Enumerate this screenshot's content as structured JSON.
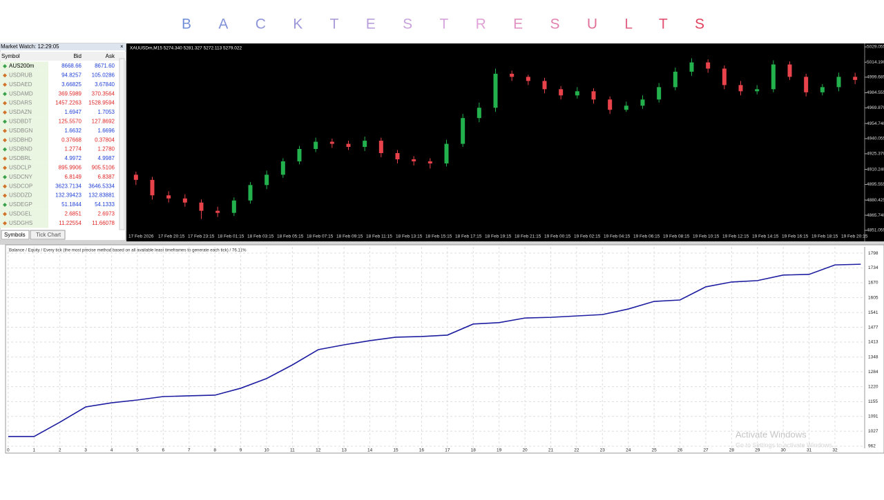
{
  "title": "BACKTESTRESULTS",
  "market_watch": {
    "title": "Market Watch: 12:29:05",
    "columns": [
      "Symbol",
      "Bid",
      "Ask"
    ],
    "rows": [
      {
        "symbol": "AUS200m",
        "bid": "8668.66",
        "ask": "8671.60",
        "color": "#1f3fd6"
      },
      {
        "symbol": "USDRUB",
        "bid": "94.8257",
        "ask": "105.0286",
        "color": "#1f3fd6"
      },
      {
        "symbol": "USDAED",
        "bid": "3.66825",
        "ask": "3.67840",
        "color": "#1f3fd6"
      },
      {
        "symbol": "USDAMD",
        "bid": "369.5989",
        "ask": "370.3564",
        "color": "#e02424"
      },
      {
        "symbol": "USDARS",
        "bid": "1457.2263",
        "ask": "1528.9594",
        "color": "#e02424"
      },
      {
        "symbol": "USDAZN",
        "bid": "1.6947",
        "ask": "1.7053",
        "color": "#1f3fd6"
      },
      {
        "symbol": "USDBDT",
        "bid": "125.5570",
        "ask": "127.8692",
        "color": "#e02424"
      },
      {
        "symbol": "USDBGN",
        "bid": "1.6632",
        "ask": "1.6696",
        "color": "#1f3fd6"
      },
      {
        "symbol": "USDBHD",
        "bid": "0.37668",
        "ask": "0.37804",
        "color": "#e02424"
      },
      {
        "symbol": "USDBND",
        "bid": "1.2774",
        "ask": "1.2780",
        "color": "#e02424"
      },
      {
        "symbol": "USDBRL",
        "bid": "4.9972",
        "ask": "4.9987",
        "color": "#1f3fd6"
      },
      {
        "symbol": "USDCLP",
        "bid": "895.9906",
        "ask": "905.5106",
        "color": "#e02424"
      },
      {
        "symbol": "USDCNY",
        "bid": "6.8149",
        "ask": "6.8387",
        "color": "#e02424"
      },
      {
        "symbol": "USDCOP",
        "bid": "3623.7134",
        "ask": "3646.5334",
        "color": "#1f3fd6"
      },
      {
        "symbol": "USDDZD",
        "bid": "132.39423",
        "ask": "132.83881",
        "color": "#1f3fd6"
      },
      {
        "symbol": "USDEGP",
        "bid": "51.1844",
        "ask": "54.1333",
        "color": "#1f3fd6"
      },
      {
        "symbol": "USDGEL",
        "bid": "2.6851",
        "ask": "2.6973",
        "color": "#e02424"
      },
      {
        "symbol": "USDGHS",
        "bid": "11.22554",
        "ask": "11.66078",
        "color": "#e02424"
      }
    ],
    "tabs": [
      "Symbols",
      "Tick Chart"
    ]
  },
  "chart_data": [
    {
      "type": "candlestick",
      "title": "XAUUSDm,M15 5274.340 5281.327 5272.113 5279.022",
      "open": [
        4905,
        4900,
        4885,
        4882,
        4878,
        4870,
        4868,
        4880,
        4895,
        4905,
        4918,
        4930,
        4937,
        4935,
        4932,
        4938,
        4926,
        4920,
        4918,
        4916,
        4935,
        4960,
        4970,
        5003,
        5000,
        4996,
        4988,
        4982,
        4986,
        4978,
        4968,
        4972,
        4978,
        4990,
        5005,
        5014,
        5008,
        4992,
        4986,
        4988,
        5012,
        5000,
        4985,
        4990,
        5000
      ],
      "high": [
        4908,
        4903,
        4889,
        4886,
        4881,
        4874,
        4883,
        4898,
        4909,
        4921,
        4933,
        4941,
        4940,
        4938,
        4942,
        4941,
        4929,
        4923,
        4921,
        4939,
        4964,
        4975,
        5008,
        5006,
        5002,
        4999,
        4991,
        4990,
        4989,
        4981,
        4976,
        4982,
        4994,
        5009,
        5018,
        5017,
        5011,
        4996,
        4992,
        5016,
        5015,
        5003,
        4993,
        5004,
        5004
      ],
      "low": [
        4895,
        4881,
        4878,
        4874,
        4862,
        4864,
        4865,
        4877,
        4891,
        4902,
        4915,
        4927,
        4931,
        4929,
        4928,
        4922,
        4916,
        4914,
        4911,
        4913,
        4932,
        4956,
        4966,
        4996,
        4992,
        4984,
        4978,
        4979,
        4974,
        4964,
        4966,
        4969,
        4975,
        4987,
        5001,
        5004,
        4988,
        4982,
        4983,
        4985,
        4997,
        4981,
        4982,
        4986,
        4993
      ],
      "close": [
        4900,
        4885,
        4882,
        4878,
        4870,
        4868,
        4880,
        4895,
        4905,
        4918,
        4930,
        4937,
        4935,
        4932,
        4938,
        4926,
        4920,
        4918,
        4916,
        4935,
        4960,
        4970,
        5003,
        5000,
        4996,
        4988,
        4982,
        4986,
        4978,
        4968,
        4972,
        4978,
        4990,
        5005,
        5014,
        5008,
        4992,
        4986,
        4988,
        5012,
        5000,
        4985,
        4990,
        5000,
        4997
      ],
      "up_color": "#22b14c",
      "down_color": "#e8424a",
      "ylim": [
        4849.7,
        5032.4
      ],
      "yticks": [
        5029.055,
        {
          "value": 5014.19,
          "label": "5014.190"
        },
        4999.685,
        4984.555,
        {
          "value": 4969.87,
          "label": "4969.870"
        },
        {
          "value": 4954.74,
          "label": "4954.740"
        },
        4940.055,
        {
          "value": 4925.37,
          "label": "4925.370"
        },
        {
          "value": 4910.24,
          "label": "4910.240"
        },
        4895.555,
        4880.425,
        {
          "value": 4865.74,
          "label": "4865.740"
        },
        4851.055
      ],
      "xlabels": [
        "17 Feb 2026",
        "17 Feb 20:15",
        "17 Feb 23:15",
        "18 Feb 01:15",
        "18 Feb 03:15",
        "18 Feb 05:15",
        "18 Feb 07:15",
        "18 Feb 09:15",
        "18 Feb 11:15",
        "18 Feb 13:15",
        "18 Feb 15:15",
        "18 Feb 17:15",
        "18 Feb 19:15",
        "18 Feb 21:15",
        "19 Feb 00:15",
        "19 Feb 02:15",
        "19 Feb 04:15",
        "19 Feb 06:15",
        "19 Feb 08:15",
        "19 Feb 10:15",
        "19 Feb 12:15",
        "19 Feb 14:15",
        "19 Feb 16:15",
        "19 Feb 18:15",
        "19 Feb 20:15"
      ]
    },
    {
      "type": "line",
      "title": "Balance / Equity / Every tick (the most precise method based on all available least timeframes to generate each tick) / 76.11%",
      "x": [
        0,
        1,
        2,
        3,
        4,
        5,
        6,
        7,
        8,
        9,
        10,
        11,
        12,
        13,
        14,
        15,
        16,
        17,
        18,
        19,
        20,
        21,
        22,
        23,
        24,
        25,
        26,
        27,
        28,
        29,
        30,
        31,
        32,
        33
      ],
      "series": [
        {
          "color": "#1c1ca0",
          "values": [
            1004,
            1004,
            1066,
            1132,
            1150,
            1162,
            1177,
            1180,
            1183,
            1213,
            1255,
            1314,
            1380,
            1401,
            1419,
            1434,
            1437,
            1443,
            1491,
            1497,
            1517,
            1520,
            1526,
            1532,
            1556,
            1589,
            1595,
            1652,
            1673,
            1679,
            1703,
            1706,
            1747,
            1750
          ]
        }
      ],
      "xlim": [
        -0.05,
        33.15
      ],
      "ylim": [
        953,
        1825
      ],
      "xticks": [
        0,
        1,
        2,
        3,
        4,
        5,
        6,
        7,
        8,
        9,
        10,
        11,
        12,
        13,
        14,
        15,
        16,
        17,
        18,
        19,
        20,
        21,
        22,
        23,
        24,
        25,
        26,
        27,
        28,
        29,
        30,
        31,
        32
      ],
      "yticks": [
        1798,
        1734,
        1670,
        1605,
        1541,
        1477,
        1413,
        1348,
        1284,
        1220,
        1155,
        1091,
        1027,
        962
      ],
      "grid": true
    }
  ],
  "os_notice": {
    "title": "Activate Windows",
    "text": "Go to Settings to activate Windows."
  }
}
